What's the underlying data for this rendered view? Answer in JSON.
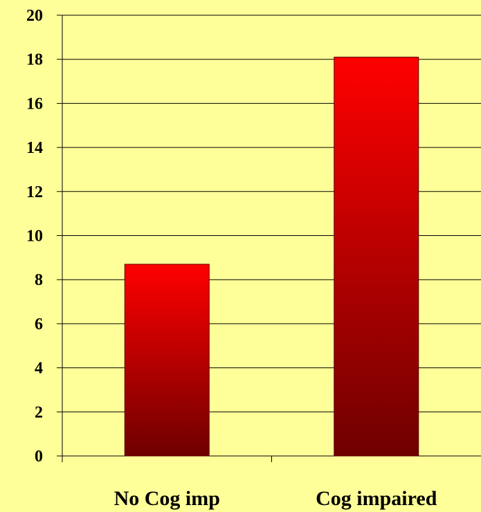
{
  "colors": {
    "background": "#FFFF99",
    "gridline": "#000000",
    "bar_top": "#FF0000",
    "bar_bottom": "#6E0000"
  },
  "chart_data": {
    "type": "bar",
    "categories": [
      "No Cog imp",
      "Cog impaired"
    ],
    "values": [
      8.7,
      18.1
    ],
    "title": "",
    "xlabel": "",
    "ylabel": "",
    "ylim": [
      0,
      20
    ],
    "y_ticks": [
      "0",
      "2",
      "4",
      "6",
      "8",
      "10",
      "12",
      "14",
      "16",
      "18",
      "20"
    ],
    "grid": true,
    "legend": false
  }
}
